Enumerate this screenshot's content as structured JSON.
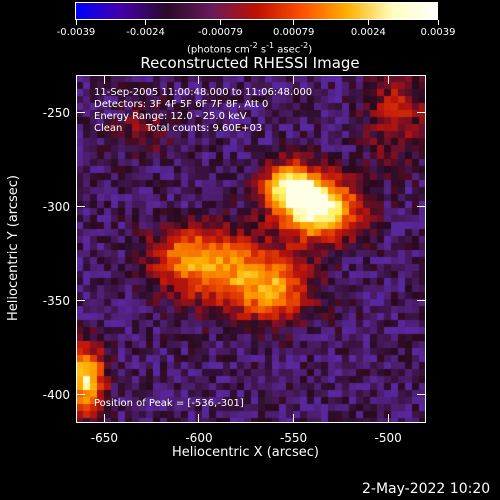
{
  "colorbar": {
    "tick_labels": [
      "-0.0039",
      "-0.0024",
      "-0.00079",
      "0.00079",
      "0.0024",
      "0.0039"
    ],
    "tick_values": [
      -0.0039,
      -0.0024,
      -0.00079,
      0.00079,
      0.0024,
      0.0039
    ],
    "unit_label": "(photons cm",
    "unit_sup1": "-2",
    "unit_mid": " s",
    "unit_sup2": "-1",
    "unit_end": " asec",
    "unit_sup3": "-2",
    "unit_close": ")",
    "gradient": [
      "#0000ff",
      "#4400aa",
      "#2a0a2a",
      "#6a1a5a",
      "#c01000",
      "#ff5000",
      "#ffb000",
      "#ffffc0",
      "#ffffff"
    ]
  },
  "chart_data": {
    "type": "heatmap",
    "title": "Reconstructed RHESSI Image",
    "xlabel": "Heliocentric X (arcsec)",
    "ylabel": "Heliocentric Y (arcsec)",
    "xlim": [
      -665,
      -480
    ],
    "ylim": [
      -415,
      -230
    ],
    "xticks": [
      -650,
      -600,
      -550,
      -500
    ],
    "xtick_labels": [
      "-650",
      "-600",
      "-550",
      "-500"
    ],
    "yticks": [
      -250,
      -300,
      -350,
      -400
    ],
    "ytick_labels": [
      "-250",
      "-300",
      "-350",
      "-400"
    ],
    "sources": [
      {
        "x": -536,
        "y": -301,
        "amp": 1.0,
        "sx": 14,
        "sy": 11
      },
      {
        "x": -552,
        "y": -290,
        "amp": 0.8,
        "sx": 10,
        "sy": 9
      },
      {
        "x": -585,
        "y": -335,
        "amp": 0.5,
        "sx": 22,
        "sy": 14
      },
      {
        "x": -560,
        "y": -345,
        "amp": 0.45,
        "sx": 14,
        "sy": 12
      },
      {
        "x": -605,
        "y": -325,
        "amp": 0.4,
        "sx": 14,
        "sy": 10
      },
      {
        "x": -660,
        "y": -392,
        "amp": 0.85,
        "sx": 7,
        "sy": 12
      },
      {
        "x": -495,
        "y": -250,
        "amp": 0.3,
        "sx": 12,
        "sy": 18
      },
      {
        "x": -630,
        "y": -260,
        "amp": 0.2,
        "sx": 10,
        "sy": 10
      }
    ],
    "annotations": {
      "time": "11-Sep-2005 11:00:48.000 to 11:06:48.000",
      "detectors": "Detectors: 3F 4F 5F 6F 7F 8F, Att 0",
      "energy": "Energy Range: 12.0 - 25.0 keV",
      "clean": "Clean",
      "counts": "Total counts: 9.60E+03",
      "peak": "Position of Peak = [-536,-301]"
    }
  },
  "footer": {
    "date": "2-May-2022 10:20"
  }
}
